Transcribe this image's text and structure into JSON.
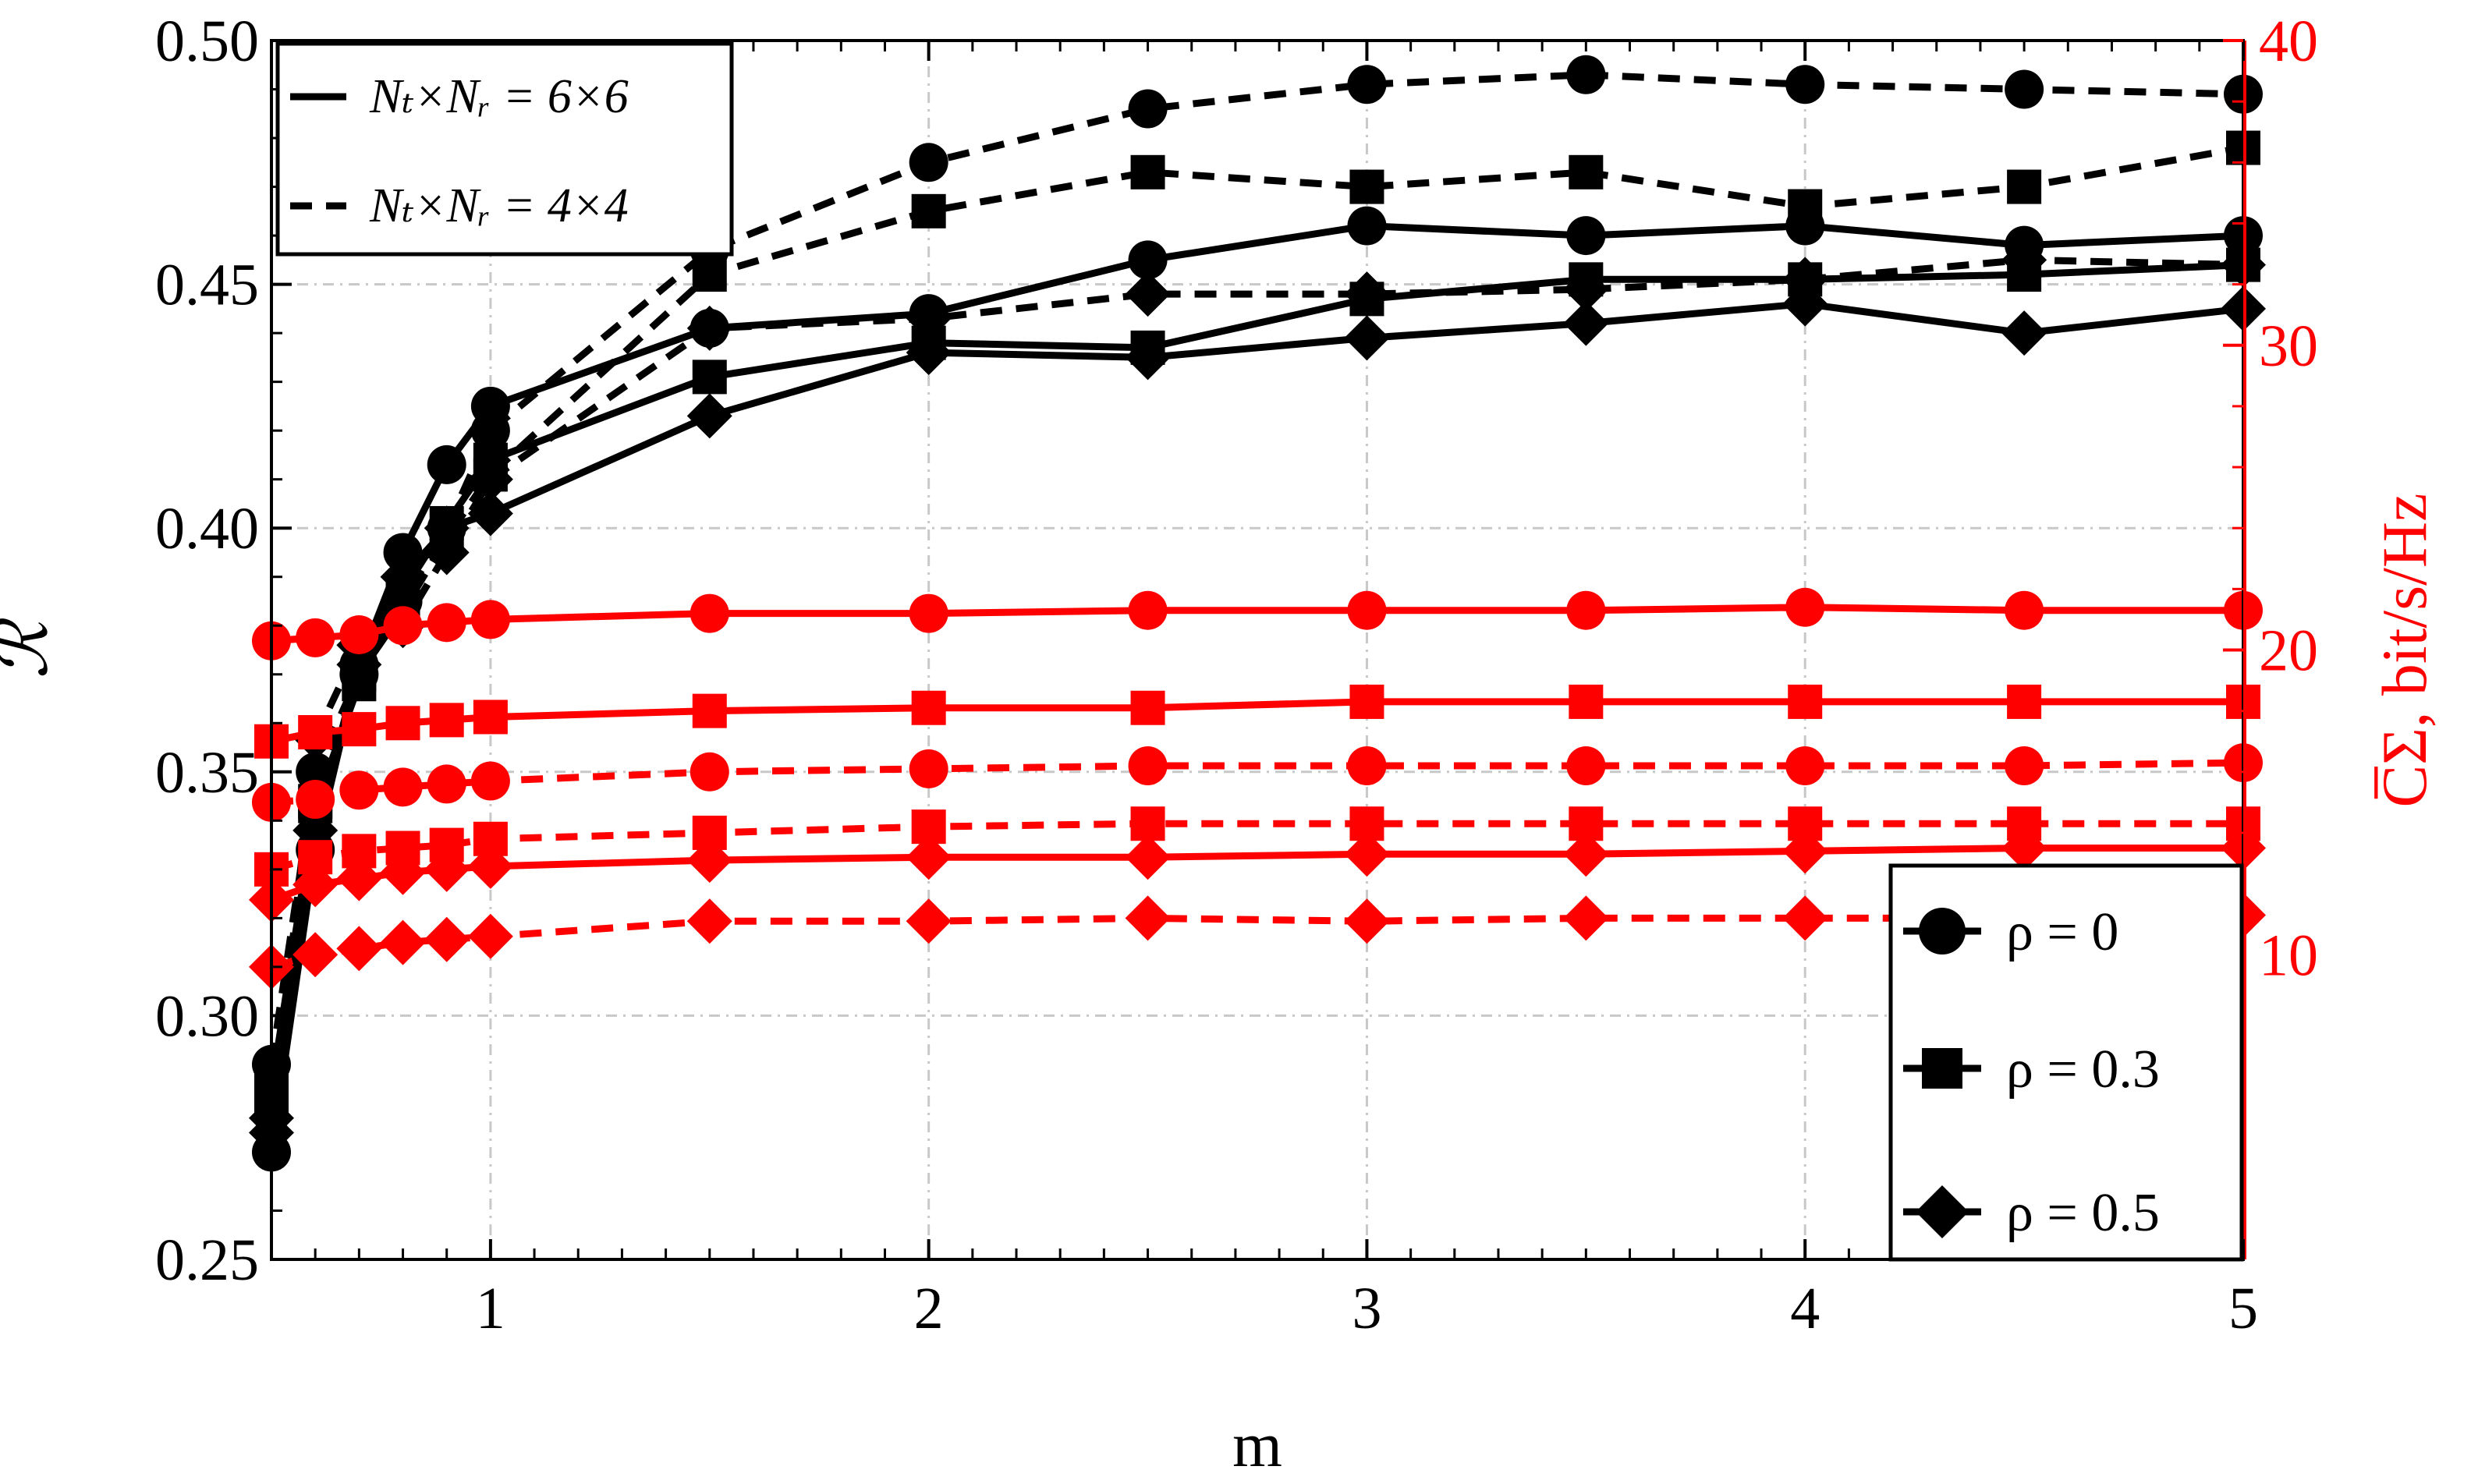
{
  "chart_data": {
    "type": "line",
    "xlabel": "m",
    "ylabel_left": "ℛ",
    "ylabel_right": "C̅Σ, bit/s/Hz",
    "xlim": [
      0.5,
      5
    ],
    "ylim_left": [
      0.25,
      0.5
    ],
    "ylim_right": [
      0,
      40
    ],
    "x_ticks": [
      1,
      2,
      3,
      4,
      5
    ],
    "x_tick_labels": [
      "1",
      "2",
      "3",
      "4",
      "5"
    ],
    "y_left_ticks": [
      0.25,
      0.3,
      0.35,
      0.4,
      0.45,
      0.5
    ],
    "y_left_tick_labels": [
      "0.25",
      "0.30",
      "0.35",
      "0.40",
      "0.45",
      "0.50"
    ],
    "y_right_ticks": [
      10,
      20,
      30,
      40
    ],
    "y_right_tick_labels": [
      "10",
      "20",
      "30",
      "40"
    ],
    "grid": true,
    "colors": {
      "ratio": "#000000",
      "capacity": "#ff0000",
      "grid": "#c8c8c8"
    },
    "legend_antennas": [
      {
        "label": "Nₜ×Nᵣ = 6×6",
        "style": "solid"
      },
      {
        "label": "Nₜ×Nᵣ = 4×4",
        "style": "dashed"
      }
    ],
    "legend_rho": [
      {
        "label": "ρ = 0",
        "marker": "circle"
      },
      {
        "label": "ρ = 0.3",
        "marker": "square"
      },
      {
        "label": "ρ = 0.5",
        "marker": "diamond"
      }
    ],
    "x": [
      0.5,
      0.6,
      0.7,
      0.8,
      0.9,
      1.0,
      1.5,
      2.0,
      2.5,
      3.0,
      3.5,
      4.0,
      4.5,
      5.0
    ],
    "series": [
      {
        "name": "R, 6x6, rho=0",
        "axis": "left",
        "style": "solid",
        "marker": "circle",
        "values": [
          0.272,
          0.334,
          0.372,
          0.395,
          0.413,
          0.425,
          0.441,
          0.444,
          0.455,
          0.462,
          0.46,
          0.462,
          0.458,
          0.46
        ]
      },
      {
        "name": "R, 6x6, rho=0.3",
        "axis": "left",
        "style": "solid",
        "marker": "square",
        "values": [
          0.285,
          0.343,
          0.368,
          0.387,
          0.401,
          0.414,
          0.431,
          0.438,
          0.437,
          0.447,
          0.451,
          0.451,
          0.452,
          0.454
        ]
      },
      {
        "name": "R, 6x6, rho=0.5",
        "axis": "left",
        "style": "solid",
        "marker": "diamond",
        "values": [
          0.279,
          0.338,
          0.372,
          0.39,
          0.4,
          0.403,
          0.423,
          0.436,
          0.435,
          0.439,
          0.442,
          0.446,
          0.44,
          0.445
        ]
      },
      {
        "name": "R, 4x4, rho=0",
        "axis": "left",
        "style": "dashed",
        "marker": "circle",
        "values": [
          0.29,
          0.35,
          0.37,
          0.385,
          0.4,
          0.42,
          0.457,
          0.475,
          0.486,
          0.491,
          0.493,
          0.491,
          0.49,
          0.489
        ]
      },
      {
        "name": "R, 4x4, rho=0.3",
        "axis": "left",
        "style": "dashed",
        "marker": "square",
        "values": [
          0.282,
          0.344,
          0.37,
          0.383,
          0.398,
          0.411,
          0.452,
          0.465,
          0.473,
          0.47,
          0.473,
          0.466,
          0.47,
          0.478
        ]
      },
      {
        "name": "R, 4x4, rho=0.5",
        "axis": "left",
        "style": "dashed",
        "marker": "diamond",
        "values": [
          0.276,
          0.357,
          0.376,
          0.38,
          0.395,
          0.41,
          0.441,
          0.443,
          0.448,
          0.448,
          0.449,
          0.451,
          0.455,
          0.454
        ]
      },
      {
        "name": "C, 6x6, rho=0",
        "axis": "right",
        "style": "solid",
        "marker": "circle",
        "values": [
          20.3,
          20.4,
          20.5,
          20.8,
          20.9,
          21.0,
          21.2,
          21.2,
          21.3,
          21.3,
          21.3,
          21.4,
          21.3,
          21.3
        ]
      },
      {
        "name": "C, 6x6, rho=0.3",
        "axis": "right",
        "style": "solid",
        "marker": "square",
        "values": [
          17.0,
          17.3,
          17.4,
          17.6,
          17.7,
          17.8,
          18.0,
          18.1,
          18.1,
          18.3,
          18.3,
          18.3,
          18.3,
          18.3
        ]
      },
      {
        "name": "C, 6x6, rho=0.5",
        "axis": "right",
        "style": "solid",
        "marker": "diamond",
        "values": [
          11.8,
          12.3,
          12.5,
          12.7,
          12.8,
          12.9,
          13.1,
          13.2,
          13.2,
          13.3,
          13.3,
          13.4,
          13.5,
          13.5
        ]
      },
      {
        "name": "C, 4x4, rho=0",
        "axis": "right",
        "style": "dashed",
        "marker": "circle",
        "values": [
          15.0,
          15.1,
          15.4,
          15.5,
          15.6,
          15.7,
          16.0,
          16.1,
          16.2,
          16.2,
          16.2,
          16.2,
          16.2,
          16.3
        ]
      },
      {
        "name": "C, 4x4, rho=0.3",
        "axis": "right",
        "style": "dashed",
        "marker": "square",
        "values": [
          12.8,
          13.2,
          13.4,
          13.5,
          13.6,
          13.8,
          14.0,
          14.2,
          14.3,
          14.3,
          14.3,
          14.3,
          14.3,
          14.3
        ]
      },
      {
        "name": "C, 4x4, rho=0.5",
        "axis": "right",
        "style": "dashed",
        "marker": "diamond",
        "values": [
          9.6,
          10.0,
          10.2,
          10.4,
          10.5,
          10.6,
          11.1,
          11.1,
          11.2,
          11.1,
          11.2,
          11.2,
          11.2,
          11.3
        ]
      }
    ]
  }
}
